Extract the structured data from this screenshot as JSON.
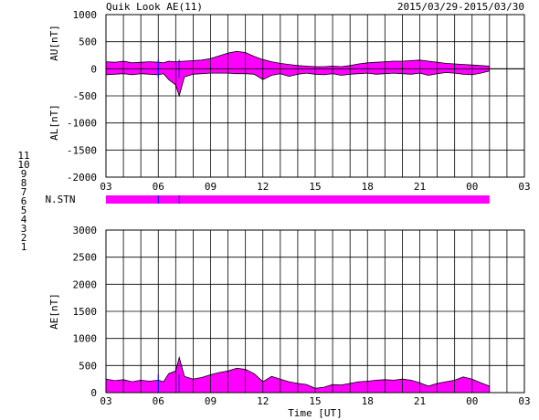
{
  "header": {
    "title": "Quik Look AE(11)",
    "date_range": "2015/03/29-2015/03/30"
  },
  "legend": {
    "items": [
      {
        "label": "11",
        "color": "#00e5e5"
      },
      {
        "label": "10",
        "color": "#ff00ff"
      },
      {
        "label": "9",
        "color": "#0000cc"
      },
      {
        "label": "8",
        "color": "#ffcc66"
      },
      {
        "label": "7",
        "color": "#cccc00"
      },
      {
        "label": "6",
        "color": "#ff0000"
      },
      {
        "label": "5",
        "color": "#cccccc"
      },
      {
        "label": "4",
        "color": "#999999"
      },
      {
        "label": "3",
        "color": "#00aaaa"
      },
      {
        "label": "2",
        "color": "#aa00aa"
      },
      {
        "label": "1",
        "color": "#0000ff"
      }
    ]
  },
  "colors": {
    "fill": "#ff00ff",
    "line": "#000000",
    "station_marker": "#0000ff"
  },
  "chart_data": [
    {
      "type": "area",
      "name": "AU/AL panel",
      "ylabel_upper": "AU[nT]",
      "ylabel_lower": "AL[nT]",
      "ylim": [
        -2000,
        1000
      ],
      "yticks": [
        1000,
        500,
        0,
        -500,
        -1000,
        -1500,
        -2000
      ],
      "xlim": [
        3,
        27
      ],
      "xticks": [
        "03",
        "06",
        "09",
        "12",
        "15",
        "18",
        "21",
        "00",
        "03"
      ],
      "grid": true,
      "series": [
        {
          "name": "AU",
          "x": [
            3.0,
            3.5,
            4.0,
            4.5,
            5.0,
            5.5,
            6.0,
            6.3,
            6.6,
            7.0,
            7.5,
            8.0,
            8.5,
            9.0,
            9.5,
            10.0,
            10.5,
            11.0,
            11.5,
            12.0,
            12.5,
            13.0,
            13.5,
            14.0,
            14.5,
            15.0,
            15.5,
            16.0,
            16.5,
            17.0,
            17.5,
            18.0,
            18.5,
            19.0,
            19.5,
            20.0,
            20.5,
            21.0,
            21.5,
            22.0,
            22.5,
            23.0,
            23.5,
            24.0,
            24.5,
            25.0
          ],
          "values": [
            130,
            120,
            140,
            110,
            120,
            130,
            120,
            110,
            140,
            130,
            140,
            150,
            160,
            190,
            240,
            290,
            320,
            300,
            230,
            170,
            130,
            100,
            80,
            60,
            50,
            40,
            40,
            50,
            40,
            60,
            90,
            110,
            120,
            130,
            140,
            140,
            150,
            160,
            140,
            120,
            100,
            90,
            80,
            70,
            60,
            50
          ]
        },
        {
          "name": "AL",
          "x": [
            3.0,
            3.5,
            4.0,
            4.5,
            5.0,
            5.5,
            6.0,
            6.3,
            6.6,
            7.0,
            7.2,
            7.5,
            8.0,
            8.5,
            9.0,
            9.5,
            10.0,
            10.5,
            11.0,
            11.5,
            12.0,
            12.5,
            13.0,
            13.5,
            14.0,
            14.5,
            15.0,
            15.5,
            16.0,
            16.5,
            17.0,
            17.5,
            18.0,
            18.5,
            19.0,
            19.5,
            20.0,
            20.5,
            21.0,
            21.5,
            22.0,
            22.5,
            23.0,
            23.5,
            24.0,
            24.5,
            25.0
          ],
          "values": [
            -110,
            -100,
            -90,
            -110,
            -90,
            -100,
            -110,
            -90,
            -200,
            -300,
            -500,
            -150,
            -100,
            -90,
            -80,
            -80,
            -80,
            -90,
            -90,
            -100,
            -200,
            -120,
            -90,
            -140,
            -100,
            -80,
            -100,
            -110,
            -90,
            -120,
            -100,
            -90,
            -80,
            -100,
            -90,
            -80,
            -90,
            -100,
            -80,
            -120,
            -90,
            -70,
            -80,
            -100,
            -110,
            -80,
            -40
          ]
        }
      ]
    },
    {
      "type": "table",
      "name": "station bar",
      "label": "N.STN",
      "value": 10,
      "x_end": 25.0,
      "markers": [
        6.0,
        7.2
      ]
    },
    {
      "type": "area",
      "name": "AE panel",
      "ylabel": "AE[nT]",
      "xlabel": "Time [UT]",
      "ylim": [
        0,
        3000
      ],
      "yticks": [
        3000,
        2500,
        2000,
        1500,
        1000,
        500,
        0
      ],
      "xlim": [
        3,
        27
      ],
      "xticks": [
        "03",
        "06",
        "09",
        "12",
        "15",
        "18",
        "21",
        "00",
        "03"
      ],
      "grid": true,
      "series": [
        {
          "name": "AE",
          "x": [
            3.0,
            3.5,
            4.0,
            4.5,
            5.0,
            5.5,
            6.0,
            6.3,
            6.6,
            7.0,
            7.2,
            7.5,
            8.0,
            8.5,
            9.0,
            9.5,
            10.0,
            10.5,
            11.0,
            11.5,
            12.0,
            12.5,
            13.0,
            13.5,
            14.0,
            14.5,
            15.0,
            15.5,
            16.0,
            16.5,
            17.0,
            17.5,
            18.0,
            18.5,
            19.0,
            19.5,
            20.0,
            20.5,
            21.0,
            21.5,
            22.0,
            22.5,
            23.0,
            23.5,
            24.0,
            24.5,
            25.0
          ],
          "values": [
            250,
            220,
            240,
            200,
            230,
            210,
            230,
            200,
            350,
            400,
            650,
            300,
            250,
            280,
            330,
            370,
            400,
            450,
            430,
            350,
            200,
            300,
            250,
            200,
            170,
            150,
            80,
            100,
            150,
            140,
            170,
            200,
            210,
            230,
            240,
            230,
            250,
            230,
            180,
            120,
            170,
            200,
            230,
            290,
            250,
            180,
            120
          ]
        }
      ]
    }
  ]
}
